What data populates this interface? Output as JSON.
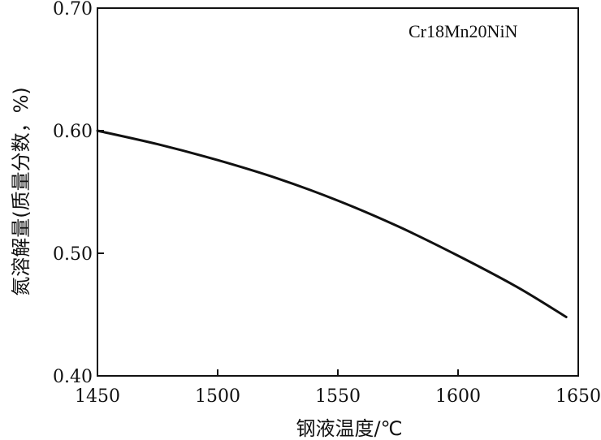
{
  "chart_data": {
    "type": "line",
    "title": "",
    "xlabel": "钢液温度/℃",
    "ylabel": "氮溶解量(质量分数，%)",
    "xlim": [
      1450,
      1650
    ],
    "ylim": [
      0.4,
      0.7
    ],
    "x_ticks": [
      1450,
      1500,
      1550,
      1600,
      1650
    ],
    "y_ticks": [
      0.4,
      0.5,
      0.6,
      0.7
    ],
    "x_tick_labels": [
      "1450",
      "1500",
      "1550",
      "1600",
      "1650"
    ],
    "y_tick_labels": [
      "0.40",
      "0.50",
      "0.60",
      "0.70"
    ],
    "annotation": "Cr18Mn20NiN",
    "grid": false,
    "line_color": "#111111",
    "series": [
      {
        "x": [
          1450,
          1475,
          1500,
          1525,
          1550,
          1575,
          1600,
          1625,
          1645
        ],
        "y": [
          0.6,
          0.589,
          0.576,
          0.561,
          0.543,
          0.522,
          0.498,
          0.472,
          0.448
        ]
      }
    ]
  }
}
